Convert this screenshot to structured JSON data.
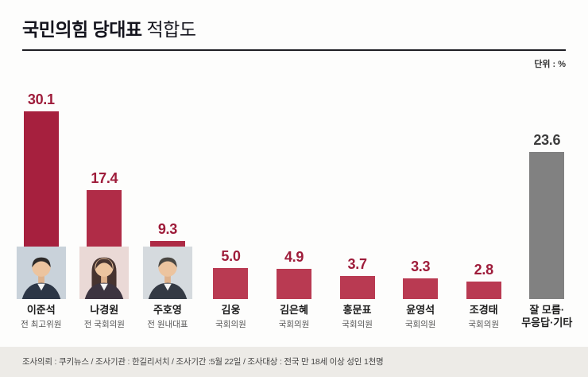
{
  "header": {
    "title_bold": "국민의힘 당대표",
    "title_light": "적합도",
    "unit": "단위 : %"
  },
  "chart_data": {
    "type": "bar",
    "title": "국민의힘 당대표 적합도",
    "unit": "%",
    "ylim": [
      0,
      32
    ],
    "grid": false,
    "legend": "none",
    "categories": [
      "이준석",
      "나경원",
      "주호영",
      "김웅",
      "김은혜",
      "홍문표",
      "윤영석",
      "조경태",
      "잘 모름·\n무응답·기타"
    ],
    "subtitles": [
      "전 최고위원",
      "전 국회의원",
      "전 원내대표",
      "국회의원",
      "국회의원",
      "국회의원",
      "국회의원",
      "국회의원",
      ""
    ],
    "values": [
      30.1,
      17.4,
      9.3,
      5.0,
      4.9,
      3.7,
      3.3,
      2.8,
      23.6
    ],
    "bar_colors": [
      "#a6203e",
      "#b02c47",
      "#ad2a45",
      "#b93a52",
      "#b93a52",
      "#b93a52",
      "#b93a52",
      "#b93a52",
      "#818181"
    ],
    "value_colors": [
      "#9e1c3a",
      "#9e1c3a",
      "#9e1c3a",
      "#9e1c3a",
      "#9e1c3a",
      "#9e1c3a",
      "#9e1c3a",
      "#9e1c3a",
      "#3d3d3d"
    ],
    "photos": [
      {
        "bg": "#c9d2da",
        "hair": "short",
        "hairColor": "#2e2b29",
        "suit": "#2c3646"
      },
      {
        "bg": "#ead9d6",
        "hair": "long",
        "hairColor": "#473430",
        "suit": "#3c3440"
      },
      {
        "bg": "#d5dade",
        "hair": "short",
        "hairColor": "#4a4743",
        "suit": "#343a44"
      },
      null,
      null,
      null,
      null,
      null,
      null
    ]
  },
  "footer": {
    "text": "조사의뢰 : 쿠키뉴스 / 조사기관 : 한길리서치 / 조사기간 :5월 22일 / 조사대상 : 전국 만 18세 이상 성인 1천명"
  }
}
